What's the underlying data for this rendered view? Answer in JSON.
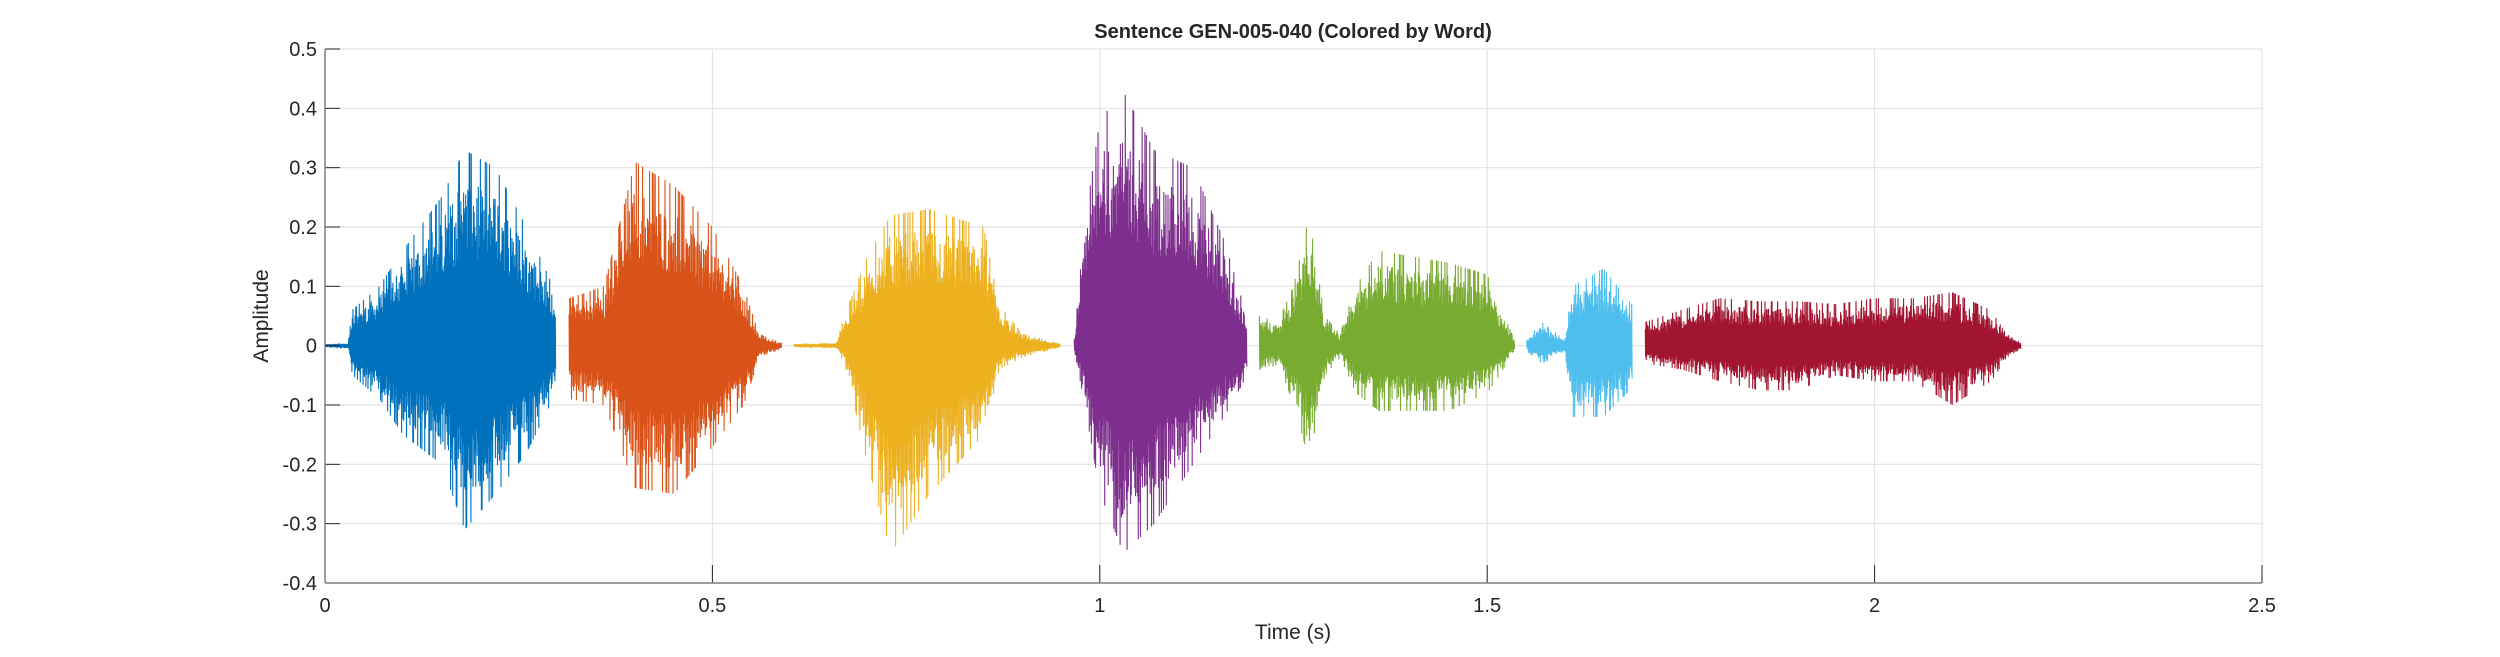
{
  "chart_data": {
    "type": "line",
    "title": "Sentence GEN-005-040 (Colored by Word)",
    "xlabel": "Time (s)",
    "ylabel": "Amplitude",
    "xlim": [
      0,
      2.5
    ],
    "ylim": [
      -0.4,
      0.5
    ],
    "xticks": [
      "0",
      "0.5",
      "1",
      "1.5",
      "2",
      "2.5"
    ],
    "xtick_values": [
      0,
      0.5,
      1,
      1.5,
      2,
      2.5
    ],
    "yticks": [
      "-0.4",
      "-0.3",
      "-0.2",
      "-0.1",
      "0",
      "0.1",
      "0.2",
      "0.3",
      "0.4",
      "0.5"
    ],
    "ytick_values": [
      -0.4,
      -0.3,
      -0.2,
      -0.1,
      0,
      0.1,
      0.2,
      0.3,
      0.4,
      0.5
    ],
    "grid": true,
    "legend": "none",
    "series": [
      {
        "color": "#0072BD",
        "t_range": [
          0,
          0.298
        ],
        "envelope": [
          [
            0,
            0.003,
            -0.003
          ],
          [
            0.03,
            0.005,
            -0.005
          ],
          [
            0.035,
            0.06,
            -0.05
          ],
          [
            0.07,
            0.1,
            -0.09
          ],
          [
            0.1,
            0.16,
            -0.15
          ],
          [
            0.15,
            0.25,
            -0.2
          ],
          [
            0.18,
            0.33,
            -0.31
          ],
          [
            0.22,
            0.3,
            -0.25
          ],
          [
            0.26,
            0.2,
            -0.18
          ],
          [
            0.298,
            0.09,
            -0.08
          ]
        ]
      },
      {
        "color": "#D95319",
        "t_range": [
          0.315,
          0.589
        ],
        "envelope": [
          [
            0.315,
            0.08,
            -0.09
          ],
          [
            0.36,
            0.1,
            -0.1
          ],
          [
            0.4,
            0.31,
            -0.24
          ],
          [
            0.45,
            0.27,
            -0.25
          ],
          [
            0.5,
            0.2,
            -0.17
          ],
          [
            0.54,
            0.1,
            -0.1
          ],
          [
            0.56,
            0.02,
            -0.02
          ],
          [
            0.589,
            0.005,
            -0.005
          ]
        ]
      },
      {
        "color": "#EDB120",
        "t_range": [
          0.605,
          0.949
        ],
        "envelope": [
          [
            0.605,
            0.003,
            -0.003
          ],
          [
            0.66,
            0.005,
            -0.005
          ],
          [
            0.67,
            0.05,
            -0.03
          ],
          [
            0.7,
            0.15,
            -0.2
          ],
          [
            0.73,
            0.22,
            -0.35
          ],
          [
            0.78,
            0.23,
            -0.25
          ],
          [
            0.85,
            0.2,
            -0.15
          ],
          [
            0.87,
            0.07,
            -0.04
          ],
          [
            0.9,
            0.02,
            -0.02
          ],
          [
            0.949,
            0.003,
            -0.003
          ]
        ]
      },
      {
        "color": "#7E2F8E",
        "t_range": [
          0.967,
          1.19
        ],
        "envelope": [
          [
            0.967,
            0.01,
            -0.01
          ],
          [
            0.98,
            0.2,
            -0.1
          ],
          [
            1.0,
            0.38,
            -0.25
          ],
          [
            1.03,
            0.43,
            -0.35
          ],
          [
            1.07,
            0.33,
            -0.3
          ],
          [
            1.12,
            0.3,
            -0.2
          ],
          [
            1.16,
            0.18,
            -0.12
          ],
          [
            1.19,
            0.05,
            -0.05
          ]
        ]
      },
      {
        "color": "#77AC30",
        "t_range": [
          1.206,
          1.535
        ],
        "envelope": [
          [
            1.206,
            0.05,
            -0.05
          ],
          [
            1.23,
            0.04,
            -0.03
          ],
          [
            1.25,
            0.1,
            -0.1
          ],
          [
            1.27,
            0.22,
            -0.195
          ],
          [
            1.29,
            0.05,
            -0.05
          ],
          [
            1.31,
            0.02,
            -0.02
          ],
          [
            1.33,
            0.1,
            -0.08
          ],
          [
            1.36,
            0.16,
            -0.11
          ],
          [
            1.45,
            0.14,
            -0.11
          ],
          [
            1.5,
            0.12,
            -0.08
          ],
          [
            1.535,
            0.01,
            -0.01
          ]
        ]
      },
      {
        "color": "#4DBEEE",
        "t_range": [
          1.551,
          1.687
        ],
        "envelope": [
          [
            1.551,
            0.01,
            -0.01
          ],
          [
            1.57,
            0.04,
            -0.03
          ],
          [
            1.6,
            0.01,
            -0.01
          ],
          [
            1.61,
            0.1,
            -0.12
          ],
          [
            1.65,
            0.13,
            -0.12
          ],
          [
            1.687,
            0.07,
            -0.07
          ]
        ]
      },
      {
        "color": "#A2142F",
        "t_range": [
          1.704,
          2.189
        ],
        "envelope": [
          [
            1.704,
            0.04,
            -0.03
          ],
          [
            1.75,
            0.06,
            -0.04
          ],
          [
            1.8,
            0.08,
            -0.06
          ],
          [
            1.85,
            0.075,
            -0.075
          ],
          [
            1.9,
            0.075,
            -0.075
          ],
          [
            1.95,
            0.07,
            -0.05
          ],
          [
            2.0,
            0.08,
            -0.06
          ],
          [
            2.05,
            0.08,
            -0.06
          ],
          [
            2.1,
            0.09,
            -0.1
          ],
          [
            2.15,
            0.06,
            -0.06
          ],
          [
            2.17,
            0.02,
            -0.02
          ],
          [
            2.189,
            0.005,
            -0.005
          ]
        ]
      }
    ]
  }
}
